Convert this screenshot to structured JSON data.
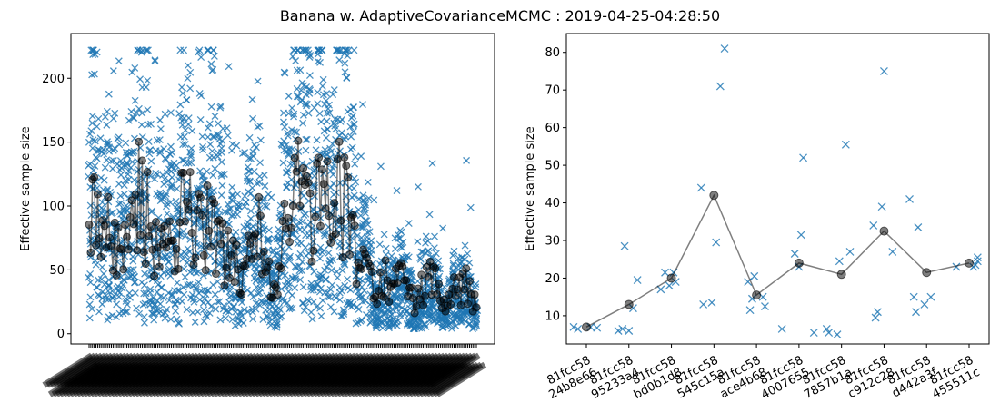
{
  "title": "Banana w. AdaptiveCovarianceMCMC : 2019-04-25-04:28:50",
  "colors": {
    "marker": "#1f77b4",
    "mean": "#000000"
  },
  "chart_data": [
    {
      "type": "scatter",
      "ylabel": "Effective sample size",
      "xlabel": "",
      "ylim": [
        -8,
        235
      ],
      "yticks": [
        0,
        50,
        100,
        150,
        200
      ],
      "n_runs": 227,
      "x_tick_labels": "dense overlapping commit labels (unreadable)",
      "mean_series_sample": [
        {
          "run": 1,
          "mean": 75
        },
        {
          "run": 3,
          "mean": 105
        },
        {
          "run": 8,
          "mean": 65
        },
        {
          "run": 12,
          "mean": 85
        },
        {
          "run": 20,
          "mean": 58
        },
        {
          "run": 30,
          "mean": 111
        },
        {
          "run": 40,
          "mean": 70
        },
        {
          "run": 50,
          "mean": 82
        },
        {
          "run": 60,
          "mean": 95
        },
        {
          "run": 70,
          "mean": 80
        },
        {
          "run": 80,
          "mean": 60
        },
        {
          "run": 90,
          "mean": 45
        },
        {
          "run": 100,
          "mean": 90
        },
        {
          "run": 110,
          "mean": 30
        },
        {
          "run": 120,
          "mean": 117
        },
        {
          "run": 130,
          "mean": 80
        },
        {
          "run": 140,
          "mean": 128
        },
        {
          "run": 150,
          "mean": 100
        },
        {
          "run": 160,
          "mean": 50
        },
        {
          "run": 170,
          "mean": 35
        },
        {
          "run": 180,
          "mean": 48
        },
        {
          "run": 190,
          "mean": 25
        },
        {
          "run": 200,
          "mean": 40
        },
        {
          "run": 210,
          "mean": 28
        },
        {
          "run": 220,
          "mean": 42
        },
        {
          "run": 227,
          "mean": 20
        }
      ],
      "marker_mean": "o (black, translucent)",
      "marker_samples": "x (blue)"
    },
    {
      "type": "scatter",
      "ylabel": "Effective sample size",
      "xlabel": "",
      "ylim": [
        2.5,
        85
      ],
      "yticks": [
        10,
        20,
        30,
        40,
        50,
        60,
        70,
        80
      ],
      "categories": [
        "81fcc58\n24b8e66",
        "81fcc58\n95233a4",
        "81fcc58\nbd0b1d8",
        "81fcc58\n545c15a",
        "81fcc58\nace4b68",
        "81fcc58\n4007655",
        "81fcc58\n7857b1a",
        "81fcc58\nc912c28",
        "81fcc58\nd442a3f",
        "81fcc58\n455511c"
      ],
      "means": [
        7,
        13,
        20,
        42,
        15.5,
        24,
        21,
        32.5,
        21.5,
        24
      ],
      "samples": [
        [
          [
            -0.3,
            7
          ],
          [
            -0.2,
            6.5
          ],
          [
            0.1,
            7
          ],
          [
            0.25,
            6.8
          ]
        ],
        [
          [
            -0.25,
            6
          ],
          [
            -0.15,
            6.5
          ],
          [
            -0.1,
            28.5
          ],
          [
            0.0,
            6
          ],
          [
            0.1,
            12
          ],
          [
            0.2,
            19.5
          ]
        ],
        [
          [
            -0.25,
            17
          ],
          [
            -0.15,
            21.5
          ],
          [
            -0.05,
            18
          ],
          [
            0.05,
            21.5
          ],
          [
            0.1,
            19
          ]
        ],
        [
          [
            -0.3,
            44
          ],
          [
            -0.25,
            13
          ],
          [
            -0.05,
            13.5
          ],
          [
            0.05,
            29.5
          ],
          [
            0.15,
            71
          ],
          [
            0.25,
            81
          ]
        ],
        [
          [
            -0.2,
            19
          ],
          [
            -0.15,
            11.5
          ],
          [
            -0.1,
            14.5
          ],
          [
            -0.05,
            20.5
          ],
          [
            0.15,
            15
          ],
          [
            0.2,
            12.5
          ]
        ],
        [
          [
            -0.4,
            6.5
          ],
          [
            -0.1,
            26.5
          ],
          [
            0.0,
            23
          ],
          [
            0.05,
            31.5
          ],
          [
            0.1,
            52
          ],
          [
            0.35,
            5.5
          ]
        ],
        [
          [
            -0.35,
            6.5
          ],
          [
            -0.3,
            5.5
          ],
          [
            -0.1,
            5
          ],
          [
            -0.05,
            24.5
          ],
          [
            0.1,
            55.5
          ],
          [
            0.2,
            27
          ]
        ],
        [
          [
            -0.25,
            34
          ],
          [
            -0.2,
            9.5
          ],
          [
            -0.15,
            11
          ],
          [
            -0.05,
            39
          ],
          [
            0.0,
            75
          ],
          [
            0.2,
            27
          ]
        ],
        [
          [
            -0.4,
            41
          ],
          [
            -0.3,
            15
          ],
          [
            -0.25,
            11
          ],
          [
            -0.2,
            33.5
          ],
          [
            -0.05,
            13
          ],
          [
            0.1,
            15
          ]
        ],
        [
          [
            -0.3,
            23
          ],
          [
            0.1,
            23
          ],
          [
            0.15,
            23.5
          ],
          [
            0.2,
            25.5
          ],
          [
            0.2,
            24.5
          ]
        ]
      ],
      "marker_mean": "o (black, translucent)",
      "marker_samples": "x (blue)"
    }
  ]
}
